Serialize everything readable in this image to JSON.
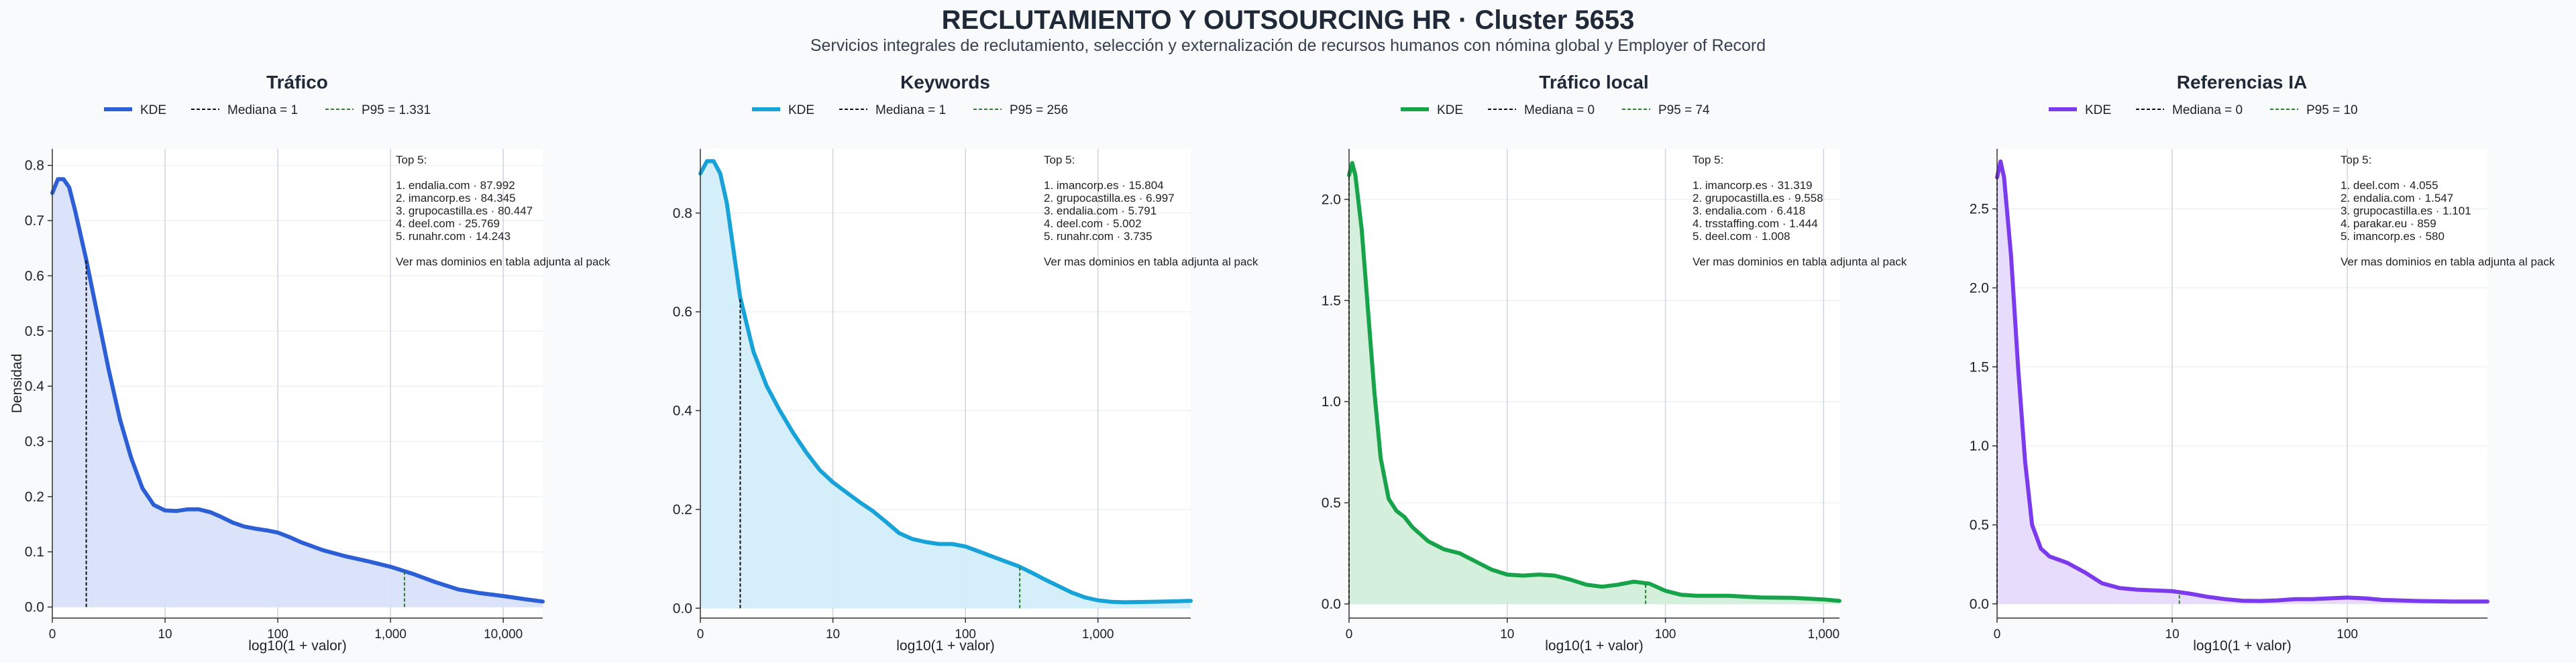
{
  "figure": {
    "title": "RECLUTAMIENTO Y OUTSOURCING HR · Cluster 5653",
    "subtitle": "Servicios integrales de reclutamiento, selección y externalización de recursos humanos con nómina global y Employer of Record"
  },
  "chart_data": [
    {
      "type": "area",
      "title": "Tráfico",
      "xlabel": "log10(1 + valor)",
      "ylabel": "Densidad",
      "x_scale": "log10(1+x)",
      "color": "#2c5fd6",
      "fill": "#d8e2fa",
      "legend": {
        "kde": "KDE",
        "median": "Mediana = 1",
        "p95": "P95 = 1.331"
      },
      "xlim": [
        0,
        4.35
      ],
      "ylim": [
        -0.02,
        0.83
      ],
      "xticks": [
        {
          "v": 0,
          "label": "0"
        },
        {
          "v": 1,
          "label": "10"
        },
        {
          "v": 2,
          "label": "100"
        },
        {
          "v": 3,
          "label": "1,000"
        },
        {
          "v": 4,
          "label": "10,000"
        }
      ],
      "yticks": [
        {
          "v": 0,
          "label": "0.0"
        },
        {
          "v": 0.1,
          "label": "0.1"
        },
        {
          "v": 0.2,
          "label": "0.2"
        },
        {
          "v": 0.3,
          "label": "0.3"
        },
        {
          "v": 0.4,
          "label": "0.4"
        },
        {
          "v": 0.5,
          "label": "0.5"
        },
        {
          "v": 0.6,
          "label": "0.6"
        },
        {
          "v": 0.7,
          "label": "0.7"
        },
        {
          "v": 0.8,
          "label": "0.8"
        }
      ],
      "median_x": 0.301,
      "p95_x": 3.124,
      "kde_points": [
        [
          0,
          0.75
        ],
        [
          0.05,
          0.775
        ],
        [
          0.1,
          0.775
        ],
        [
          0.15,
          0.76
        ],
        [
          0.2,
          0.72
        ],
        [
          0.3,
          0.63
        ],
        [
          0.4,
          0.53
        ],
        [
          0.5,
          0.43
        ],
        [
          0.6,
          0.34
        ],
        [
          0.7,
          0.27
        ],
        [
          0.8,
          0.215
        ],
        [
          0.9,
          0.185
        ],
        [
          1.0,
          0.175
        ],
        [
          1.1,
          0.174
        ],
        [
          1.2,
          0.177
        ],
        [
          1.3,
          0.177
        ],
        [
          1.4,
          0.172
        ],
        [
          1.5,
          0.163
        ],
        [
          1.6,
          0.153
        ],
        [
          1.7,
          0.146
        ],
        [
          1.8,
          0.142
        ],
        [
          1.9,
          0.139
        ],
        [
          2.0,
          0.135
        ],
        [
          2.1,
          0.127
        ],
        [
          2.2,
          0.118
        ],
        [
          2.4,
          0.103
        ],
        [
          2.6,
          0.092
        ],
        [
          2.8,
          0.083
        ],
        [
          3.0,
          0.073
        ],
        [
          3.2,
          0.06
        ],
        [
          3.4,
          0.045
        ],
        [
          3.6,
          0.032
        ],
        [
          3.8,
          0.025
        ],
        [
          4.0,
          0.02
        ],
        [
          4.2,
          0.014
        ],
        [
          4.35,
          0.01
        ]
      ],
      "annotation": [
        "Top 5:",
        "",
        "1. endalia.com · 87.992",
        "2. imancorp.es · 84.345",
        "3. grupocastilla.es · 80.447",
        "4. deel.com · 25.769",
        "5. runahr.com · 14.243",
        "",
        "Ver mas dominios en tabla adjunta al pack"
      ]
    },
    {
      "type": "area",
      "title": "Keywords",
      "xlabel": "log10(1 + valor)",
      "ylabel": "",
      "x_scale": "log10(1+x)",
      "color": "#17a2d8",
      "fill": "#d2eefa",
      "legend": {
        "kde": "KDE",
        "median": "Mediana = 1",
        "p95": "P95 = 256"
      },
      "xlim": [
        0,
        3.7
      ],
      "ylim": [
        -0.02,
        0.93
      ],
      "xticks": [
        {
          "v": 0,
          "label": "0"
        },
        {
          "v": 1,
          "label": "10"
        },
        {
          "v": 2,
          "label": "100"
        },
        {
          "v": 3,
          "label": "1,000"
        }
      ],
      "yticks": [
        {
          "v": 0,
          "label": "0.0"
        },
        {
          "v": 0.2,
          "label": "0.2"
        },
        {
          "v": 0.4,
          "label": "0.4"
        },
        {
          "v": 0.6,
          "label": "0.6"
        },
        {
          "v": 0.8,
          "label": "0.8"
        }
      ],
      "median_x": 0.301,
      "p95_x": 2.41,
      "kde_points": [
        [
          0,
          0.88
        ],
        [
          0.05,
          0.905
        ],
        [
          0.1,
          0.905
        ],
        [
          0.15,
          0.88
        ],
        [
          0.2,
          0.82
        ],
        [
          0.3,
          0.63
        ],
        [
          0.4,
          0.52
        ],
        [
          0.5,
          0.45
        ],
        [
          0.6,
          0.4
        ],
        [
          0.7,
          0.355
        ],
        [
          0.8,
          0.315
        ],
        [
          0.9,
          0.28
        ],
        [
          1.0,
          0.255
        ],
        [
          1.1,
          0.235
        ],
        [
          1.2,
          0.215
        ],
        [
          1.3,
          0.197
        ],
        [
          1.4,
          0.175
        ],
        [
          1.5,
          0.152
        ],
        [
          1.6,
          0.14
        ],
        [
          1.7,
          0.134
        ],
        [
          1.8,
          0.13
        ],
        [
          1.9,
          0.13
        ],
        [
          2.0,
          0.125
        ],
        [
          2.1,
          0.115
        ],
        [
          2.2,
          0.105
        ],
        [
          2.3,
          0.095
        ],
        [
          2.4,
          0.085
        ],
        [
          2.5,
          0.072
        ],
        [
          2.6,
          0.058
        ],
        [
          2.7,
          0.045
        ],
        [
          2.8,
          0.032
        ],
        [
          2.9,
          0.022
        ],
        [
          3.0,
          0.016
        ],
        [
          3.1,
          0.013
        ],
        [
          3.2,
          0.012
        ],
        [
          3.4,
          0.013
        ],
        [
          3.6,
          0.014
        ],
        [
          3.7,
          0.015
        ]
      ],
      "annotation": [
        "Top 5:",
        "",
        "1. imancorp.es · 15.804",
        "2. grupocastilla.es · 6.997",
        "3. endalia.com · 5.791",
        "4. deel.com · 5.002",
        "5. runahr.com · 3.735",
        "",
        "Ver mas dominios en tabla adjunta al pack"
      ]
    },
    {
      "type": "area",
      "title": "Tráfico local",
      "xlabel": "log10(1 + valor)",
      "ylabel": "",
      "x_scale": "log10(1+x)",
      "color": "#16a34a",
      "fill": "#d3eedb",
      "legend": {
        "kde": "KDE",
        "median": "Mediana = 0",
        "p95": "P95 = 74"
      },
      "xlim": [
        0,
        3.1
      ],
      "ylim": [
        -0.07,
        2.25
      ],
      "xticks": [
        {
          "v": 0,
          "label": "0"
        },
        {
          "v": 1,
          "label": "10"
        },
        {
          "v": 2,
          "label": "100"
        },
        {
          "v": 3,
          "label": "1,000"
        }
      ],
      "yticks": [
        {
          "v": 0,
          "label": "0.0"
        },
        {
          "v": 0.5,
          "label": "0.5"
        },
        {
          "v": 1.0,
          "label": "1.0"
        },
        {
          "v": 1.5,
          "label": "1.5"
        },
        {
          "v": 2.0,
          "label": "2.0"
        }
      ],
      "median_x": 0,
      "p95_x": 1.875,
      "kde_points": [
        [
          0,
          2.12
        ],
        [
          0.02,
          2.18
        ],
        [
          0.04,
          2.12
        ],
        [
          0.08,
          1.85
        ],
        [
          0.12,
          1.45
        ],
        [
          0.16,
          1.05
        ],
        [
          0.2,
          0.72
        ],
        [
          0.25,
          0.52
        ],
        [
          0.3,
          0.46
        ],
        [
          0.35,
          0.43
        ],
        [
          0.4,
          0.38
        ],
        [
          0.5,
          0.31
        ],
        [
          0.6,
          0.27
        ],
        [
          0.7,
          0.25
        ],
        [
          0.8,
          0.21
        ],
        [
          0.9,
          0.17
        ],
        [
          1.0,
          0.145
        ],
        [
          1.1,
          0.14
        ],
        [
          1.2,
          0.145
        ],
        [
          1.3,
          0.14
        ],
        [
          1.4,
          0.12
        ],
        [
          1.5,
          0.095
        ],
        [
          1.6,
          0.085
        ],
        [
          1.7,
          0.095
        ],
        [
          1.8,
          0.11
        ],
        [
          1.9,
          0.1
        ],
        [
          2.0,
          0.065
        ],
        [
          2.1,
          0.045
        ],
        [
          2.2,
          0.04
        ],
        [
          2.4,
          0.04
        ],
        [
          2.6,
          0.032
        ],
        [
          2.8,
          0.03
        ],
        [
          3.0,
          0.022
        ],
        [
          3.1,
          0.015
        ]
      ],
      "annotation": [
        "Top 5:",
        "",
        "1. imancorp.es · 31.319",
        "2. grupocastilla.es · 9.558",
        "3. endalia.com · 6.418",
        "4. trsstaffing.com · 1.444",
        "5. deel.com · 1.008",
        "",
        "Ver mas dominios en tabla adjunta al pack"
      ]
    },
    {
      "type": "area",
      "title": "Referencias IA",
      "xlabel": "log10(1 + valor)",
      "ylabel": "",
      "x_scale": "log10(1+x)",
      "color": "#7c3aed",
      "fill": "#e6dafb",
      "legend": {
        "kde": "KDE",
        "median": "Mediana = 0",
        "p95": "P95 = 10"
      },
      "xlim": [
        0,
        2.8
      ],
      "ylim": [
        -0.09,
        2.88
      ],
      "xticks": [
        {
          "v": 0,
          "label": "0"
        },
        {
          "v": 1,
          "label": "10"
        },
        {
          "v": 2,
          "label": "100"
        }
      ],
      "yticks": [
        {
          "v": 0,
          "label": "0.0"
        },
        {
          "v": 0.5,
          "label": "0.5"
        },
        {
          "v": 1.0,
          "label": "1.0"
        },
        {
          "v": 1.5,
          "label": "1.5"
        },
        {
          "v": 2.0,
          "label": "2.0"
        },
        {
          "v": 2.5,
          "label": "2.5"
        }
      ],
      "median_x": 0,
      "p95_x": 1.041,
      "kde_points": [
        [
          0,
          2.7
        ],
        [
          0.02,
          2.8
        ],
        [
          0.04,
          2.7
        ],
        [
          0.08,
          2.2
        ],
        [
          0.12,
          1.5
        ],
        [
          0.16,
          0.9
        ],
        [
          0.2,
          0.5
        ],
        [
          0.25,
          0.35
        ],
        [
          0.3,
          0.3
        ],
        [
          0.4,
          0.26
        ],
        [
          0.5,
          0.2
        ],
        [
          0.6,
          0.13
        ],
        [
          0.7,
          0.1
        ],
        [
          0.8,
          0.09
        ],
        [
          0.9,
          0.085
        ],
        [
          1.0,
          0.08
        ],
        [
          1.1,
          0.065
        ],
        [
          1.2,
          0.045
        ],
        [
          1.3,
          0.03
        ],
        [
          1.4,
          0.02
        ],
        [
          1.5,
          0.018
        ],
        [
          1.6,
          0.022
        ],
        [
          1.7,
          0.03
        ],
        [
          1.8,
          0.03
        ],
        [
          1.9,
          0.035
        ],
        [
          2.0,
          0.04
        ],
        [
          2.1,
          0.035
        ],
        [
          2.2,
          0.025
        ],
        [
          2.4,
          0.018
        ],
        [
          2.6,
          0.015
        ],
        [
          2.8,
          0.015
        ]
      ],
      "annotation": [
        "Top 5:",
        "",
        "1. deel.com · 4.055",
        "2. endalia.com · 1.547",
        "3. grupocastilla.es · 1.101",
        "4. parakar.eu · 859",
        "5. imancorp.es · 580",
        "",
        "Ver mas dominios en tabla adjunta al pack"
      ]
    }
  ]
}
